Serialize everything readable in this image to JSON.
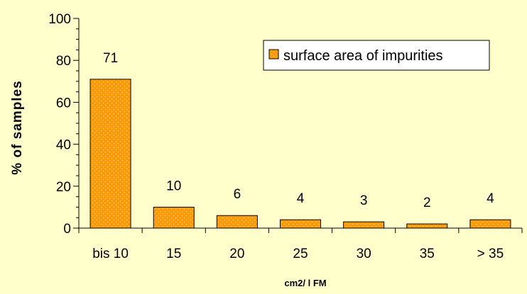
{
  "chart_data": {
    "type": "bar",
    "categories": [
      "bis 10",
      "15",
      "20",
      "25",
      "30",
      "35",
      "> 35"
    ],
    "series": [
      {
        "name": "surface area of impurities",
        "values": [
          71,
          10,
          6,
          4,
          3,
          2,
          4
        ]
      }
    ],
    "data_labels": [
      "71",
      "10",
      "6",
      "4",
      "3",
      "2",
      "4"
    ],
    "title": "",
    "xlabel": "cm2/ l FM",
    "ylabel": "% of samples",
    "ylim": [
      0,
      100
    ],
    "yticks": [
      "0",
      "20",
      "40",
      "60",
      "80",
      "100"
    ],
    "grid": false,
    "legend": {
      "position": "top-right"
    },
    "colors": {
      "background": "#ffffcc",
      "bar_fill": "#ff9900",
      "bar_dots": "#ffd890",
      "bar_stroke": "#000000",
      "axis": "#000000"
    }
  }
}
